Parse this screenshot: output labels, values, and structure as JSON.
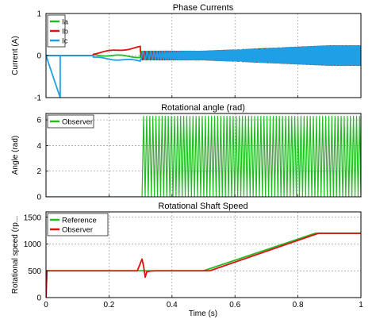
{
  "figure": {
    "x_axis_label": "Time (s)"
  },
  "chart_data": [
    {
      "type": "line",
      "title": "Phase Currents",
      "xlabel": "",
      "ylabel": "Current (A)",
      "xlim": [
        0,
        1
      ],
      "ylim": [
        -1,
        1
      ],
      "x_ticks": [
        "0",
        "0.2",
        "0.4",
        "0.6",
        "0.8",
        "1"
      ],
      "x_tick_values": [
        0,
        0.2,
        0.4,
        0.6,
        0.8,
        1.0
      ],
      "y_ticks": [
        "-1",
        "0",
        "1"
      ],
      "y_tick_values": [
        -1,
        0,
        1
      ],
      "grid": true,
      "legend": "top-left",
      "series": [
        {
          "name": "Ia",
          "color": "#22bb22",
          "kind": "current",
          "phase": 0
        },
        {
          "name": "Ib",
          "color": "#dd1111",
          "kind": "current",
          "phase": 2.094
        },
        {
          "name": "Ic",
          "color": "#1f9fe6",
          "kind": "current",
          "phase": 4.189
        }
      ]
    },
    {
      "type": "line",
      "title": "Rotational angle (rad)",
      "xlabel": "",
      "ylabel": "Angle (rad)",
      "xlim": [
        0,
        1
      ],
      "ylim": [
        0,
        6.5
      ],
      "x_ticks": [
        "0",
        "0.2",
        "0.4",
        "0.6",
        "0.8",
        "1"
      ],
      "x_tick_values": [
        0,
        0.2,
        0.4,
        0.6,
        0.8,
        1.0
      ],
      "y_ticks": [
        "0",
        "2",
        "4",
        "6"
      ],
      "y_tick_values": [
        0,
        2,
        4,
        6
      ],
      "grid": true,
      "legend": "top-left",
      "series": [
        {
          "name": "Observer",
          "color": "#22bb22",
          "kind": "sawtooth",
          "start": 0.305,
          "max": 6.28
        }
      ]
    },
    {
      "type": "line",
      "title": "Rotational Shaft Speed",
      "xlabel": "Time (s)",
      "ylabel": "Rotational speed (rp...",
      "xlim": [
        0,
        1
      ],
      "ylim": [
        0,
        1600
      ],
      "x_ticks": [
        "0",
        "0.2",
        "0.4",
        "0.6",
        "0.8",
        "1"
      ],
      "x_tick_values": [
        0,
        0.2,
        0.4,
        0.6,
        0.8,
        1.0
      ],
      "y_ticks": [
        "0",
        "500",
        "1000",
        "1500"
      ],
      "y_tick_values": [
        0,
        500,
        1000,
        1500
      ],
      "grid": true,
      "legend": "top-left",
      "series": [
        {
          "name": "Reference",
          "color": "#22bb22",
          "x": [
            0,
            0.003,
            0.5,
            0.855,
            1.0
          ],
          "y": [
            0,
            500,
            500,
            1200,
            1200
          ]
        },
        {
          "name": "Observer",
          "color": "#dd1111",
          "x": [
            0,
            0.003,
            0.29,
            0.305,
            0.31,
            0.315,
            0.32,
            0.33,
            0.35,
            0.52,
            0.865,
            1.0
          ],
          "y": [
            0,
            500,
            500,
            720,
            580,
            380,
            480,
            495,
            500,
            500,
            1200,
            1200
          ]
        }
      ]
    }
  ]
}
